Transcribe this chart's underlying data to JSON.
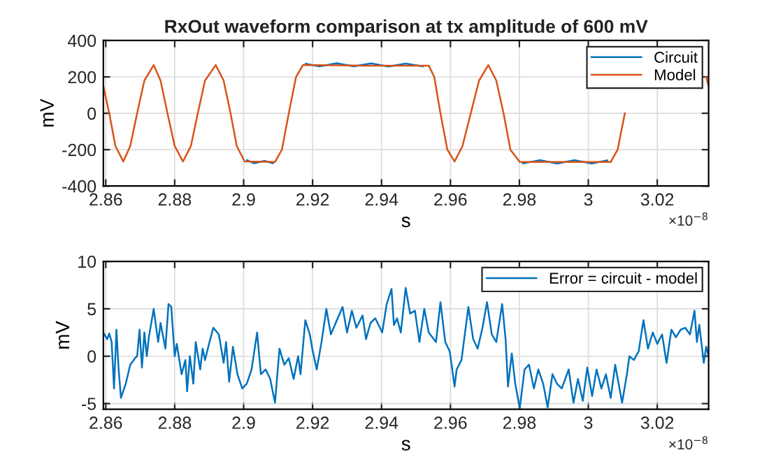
{
  "chart_data": [
    {
      "type": "line",
      "title": "RxOut waveform comparison at tx amplitude of 600 mV",
      "xlabel": "s",
      "ylabel": "mV",
      "annotations": [
        "×10$^{−8}$"
      ],
      "xlim": [
        2.8593,
        3.0349
      ],
      "xticks": [
        2.86,
        2.88,
        2.9,
        2.92,
        2.94,
        2.96,
        2.98,
        3,
        3.02
      ],
      "ylim": [
        -400,
        400
      ],
      "yticks": [
        -400,
        -200,
        0,
        200,
        400
      ],
      "grid": true,
      "legend": "top right",
      "line_style": "solid",
      "series": [
        {
          "name": "Circuit",
          "color": "#0072bd",
          "x": [
            2.901,
            2.903,
            2.906,
            2.9085,
            2.913,
            2.918,
            2.922,
            2.927,
            2.932,
            2.937,
            2.942,
            2.947,
            2.952,
            2.956,
            2.981,
            2.986,
            2.991,
            2.996,
            3.001,
            3.0055
          ],
          "values": [
            -258,
            -275,
            -262,
            -274,
            null,
            272,
            258,
            275,
            258,
            274,
            257,
            273,
            258,
            null,
            -275,
            -258,
            -276,
            -258,
            -276,
            -259
          ]
        },
        {
          "name": "Model",
          "color": "#d95319",
          "x": [
            2.8593,
            2.861,
            2.8628,
            2.8651,
            2.8671,
            2.8691,
            2.8712,
            2.8739,
            2.8759,
            2.8779,
            2.88,
            2.8824,
            2.8847,
            2.8867,
            2.8888,
            2.8919,
            2.8942,
            2.8962,
            2.898,
            2.9003,
            2.9091,
            2.9111,
            2.9131,
            2.9152,
            2.9172,
            2.9348,
            2.9537,
            2.9553,
            2.9571,
            2.9591,
            2.9612,
            2.9635,
            2.9659,
            2.9683,
            2.971,
            2.9733,
            2.9754,
            2.9774,
            2.9801,
            3.0065,
            3.0085,
            3.0106,
            3.0126,
            3.0146,
            3.0322,
            3.0342,
            3.0349
          ],
          "values": [
            150,
            0,
            -180,
            -265,
            -180,
            0,
            180,
            265,
            180,
            0,
            -180,
            -265,
            -180,
            0,
            180,
            265,
            180,
            0,
            -180,
            -265,
            -268,
            -200,
            0,
            200,
            265,
            262,
            262,
            200,
            0,
            -200,
            -265,
            -180,
            0,
            180,
            265,
            180,
            0,
            -200,
            -268,
            -268,
            -200,
            0,
            null,
            null,
            null,
            200,
            150
          ]
        }
      ]
    },
    {
      "type": "line",
      "xlabel": "s",
      "ylabel": "mV",
      "annotations": [
        "×10$^{−8}$"
      ],
      "xlim": [
        2.8593,
        3.0349
      ],
      "xticks": [
        2.86,
        2.88,
        2.9,
        2.92,
        2.94,
        2.96,
        2.98,
        3,
        3.02
      ],
      "ylim": [
        -5.6,
        10
      ],
      "yticks": [
        -5,
        0,
        5,
        10
      ],
      "grid": true,
      "legend": "top right",
      "line_style": "solid",
      "series": [
        {
          "name": "Error = circuit - model",
          "color": "#0072bd",
          "x": [
            2.8593,
            2.8604,
            2.861,
            2.8617,
            2.8624,
            2.8631,
            2.8637,
            2.8644,
            2.8658,
            2.8671,
            2.8685,
            2.8691,
            2.8698,
            2.8705,
            2.8712,
            2.8719,
            2.8725,
            2.8739,
            2.8752,
            2.8759,
            2.8773,
            2.8782,
            2.879,
            2.88,
            2.8806,
            2.882,
            2.8831,
            2.8836,
            2.8844,
            2.8854,
            2.8861,
            2.8874,
            2.8881,
            2.8888,
            2.8901,
            2.8912,
            2.8928,
            2.8942,
            2.8949,
            2.8958,
            2.8969,
            2.8982,
            2.8996,
            2.9009,
            2.9023,
            2.9039,
            2.905,
            2.9064,
            2.9077,
            2.9091,
            2.9104,
            2.9118,
            2.9131,
            2.9145,
            2.9158,
            2.9165,
            2.9179,
            2.9192,
            2.9199,
            2.9212,
            2.9226,
            2.924,
            2.9253,
            2.9267,
            2.9287,
            2.93,
            2.9314,
            2.9327,
            2.9345,
            2.9355,
            2.9368,
            2.9382,
            2.9402,
            2.9415,
            2.9429,
            2.9436,
            2.9445,
            2.9456,
            2.947,
            2.9483,
            2.9497,
            2.951,
            2.9524,
            2.9537,
            2.9558,
            2.9571,
            2.9585,
            2.9598,
            2.9612,
            2.9618,
            2.9632,
            2.9652,
            2.9666,
            2.9679,
            2.9693,
            2.9706,
            2.972,
            2.9733,
            2.975,
            2.976,
            2.9767,
            2.9778,
            2.9788,
            2.9801,
            2.9815,
            2.9828,
            2.9842,
            2.9855,
            2.9869,
            2.9882,
            2.9896,
            2.9909,
            2.9923,
            2.9943,
            2.9957,
            2.997,
            2.9984,
            2.9997,
            3.0011,
            3.0024,
            3.0038,
            3.0051,
            3.0065,
            3.0078,
            3.0098,
            3.0112,
            3.0119,
            3.0132,
            3.0146,
            3.016,
            3.0173,
            3.0187,
            3.02,
            3.0214,
            3.0227,
            3.0241,
            3.0254,
            3.0268,
            3.0281,
            3.0295,
            3.0308,
            3.0315,
            3.0322,
            3.0335,
            3.0342,
            3.0349
          ],
          "values": [
            2.5,
            1.8,
            2.4,
            1.5,
            -3.4,
            2.8,
            -1.2,
            -4.4,
            -2.9,
            -0.9,
            -0.2,
            0.0,
            2.8,
            -1.2,
            2.5,
            0.0,
            2.0,
            5.0,
            1.5,
            3.5,
            0.8,
            5.5,
            5.2,
            0.0,
            1.3,
            -1.9,
            -0.4,
            -3.7,
            0.0,
            -2.9,
            1.5,
            -1.4,
            0.8,
            -0.4,
            1.5,
            3.0,
            2.3,
            -0.7,
            1.5,
            -2.7,
            1.0,
            -1.9,
            -3.4,
            -2.9,
            -1.4,
            2.5,
            -1.9,
            -1.4,
            -2.4,
            -4.9,
            0.8,
            -0.9,
            -0.2,
            -2.4,
            0.0,
            -1.9,
            3.8,
            2.3,
            0.8,
            -1.4,
            1.5,
            5.0,
            2.3,
            3.5,
            5.2,
            2.5,
            4.8,
            3.0,
            4.3,
            1.8,
            3.5,
            4.0,
            2.5,
            5.5,
            7.1,
            3.3,
            4.0,
            2.5,
            7.2,
            4.5,
            4.8,
            1.5,
            5.0,
            2.5,
            1.5,
            5.7,
            1.5,
            0.5,
            -3.2,
            -1.4,
            -0.4,
            5.2,
            1.8,
            0.8,
            3.0,
            5.7,
            2.3,
            1.5,
            5.5,
            1.8,
            -3.2,
            0.3,
            -2.9,
            -5.5,
            -1.4,
            -0.9,
            -3.4,
            -1.4,
            -2.9,
            -5.4,
            -1.9,
            -2.9,
            -3.4,
            -1.4,
            -4.9,
            -2.4,
            -4.7,
            -1.2,
            -4.2,
            -1.4,
            -3.4,
            -1.9,
            -4.4,
            -0.9,
            -4.9,
            -1.9,
            0.0,
            -0.4,
            0.5,
            3.8,
            0.8,
            2.5,
            1.3,
            2.3,
            -0.7,
            2.8,
            2.0,
            2.8,
            3.0,
            2.3,
            4.8,
            1.5,
            3.3,
            -0.7,
            1.0,
            0.0
          ]
        }
      ]
    }
  ]
}
